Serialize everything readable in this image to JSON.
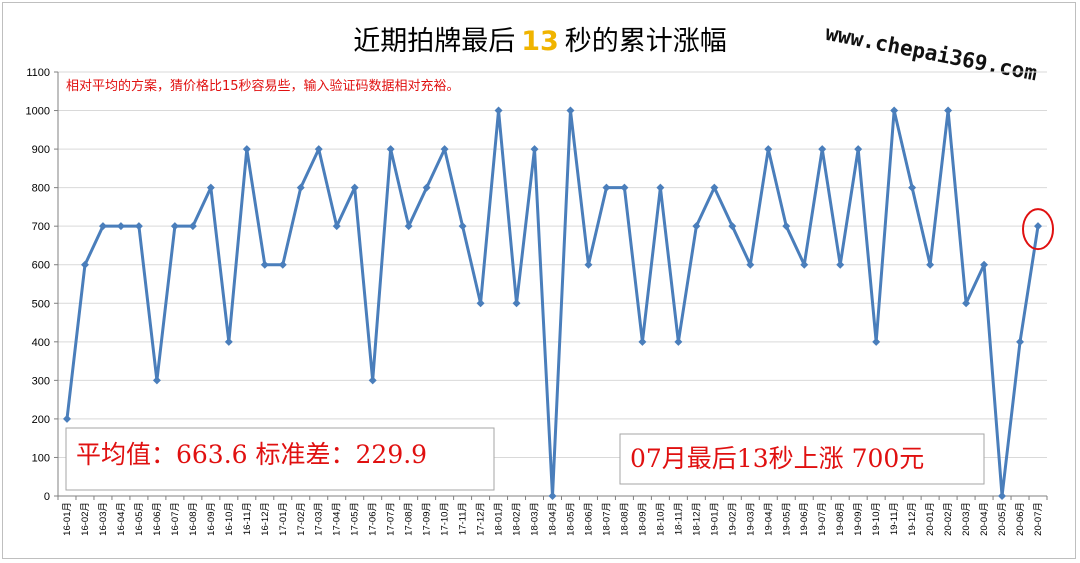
{
  "watermark": "www.chepai369.com",
  "colors": {
    "line": "#4a7ebb",
    "accent_red": "#e01010",
    "title_number": "#f0b400"
  },
  "chart_data": {
    "type": "line",
    "title_prefix": "近期拍牌最后",
    "title_number": "13",
    "title_suffix": "秒的累计涨幅",
    "subtitle": "相对平均的方案，猜价格比15秒容易些，输入验证码数据相对充裕。",
    "ylim": [
      0,
      1100
    ],
    "yticks": [
      0,
      100,
      200,
      300,
      400,
      500,
      600,
      700,
      800,
      900,
      1000,
      1100
    ],
    "grid": "horizontal",
    "legend": "none",
    "categories": [
      "16-01月",
      "16-02月",
      "16-03月",
      "16-04月",
      "16-05月",
      "16-06月",
      "16-07月",
      "16-08月",
      "16-09月",
      "16-10月",
      "16-11月",
      "16-12月",
      "17-01月",
      "17-02月",
      "17-03月",
      "17-04月",
      "17-05月",
      "17-06月",
      "17-07月",
      "17-08月",
      "17-09月",
      "17-10月",
      "17-11月",
      "17-12月",
      "18-01月",
      "18-02月",
      "18-03月",
      "18-04月",
      "18-05月",
      "18-06月",
      "18-07月",
      "18-08月",
      "18-09月",
      "18-10月",
      "18-11月",
      "18-12月",
      "19-01月",
      "19-02月",
      "19-03月",
      "19-04月",
      "19-05月",
      "19-06月",
      "19-07月",
      "19-08月",
      "19-09月",
      "19-10月",
      "19-11月",
      "19-12月",
      "20-01月",
      "20-02月",
      "20-03月",
      "20-04月",
      "20-05月",
      "20-06月",
      "20-07月"
    ],
    "values": [
      200,
      600,
      700,
      700,
      700,
      300,
      700,
      700,
      800,
      400,
      900,
      600,
      600,
      800,
      900,
      700,
      800,
      300,
      900,
      700,
      800,
      900,
      700,
      500,
      1000,
      500,
      900,
      0,
      1000,
      600,
      800,
      800,
      400,
      800,
      400,
      700,
      800,
      700,
      600,
      900,
      700,
      600,
      900,
      600,
      900,
      400,
      1000,
      800,
      600,
      1000,
      500,
      600,
      0,
      400,
      700
    ],
    "highlight_index": 54,
    "stats_label": "平均值：663.6 标准差：229.9",
    "callout_label": "07月最后13秒上涨 700元"
  }
}
